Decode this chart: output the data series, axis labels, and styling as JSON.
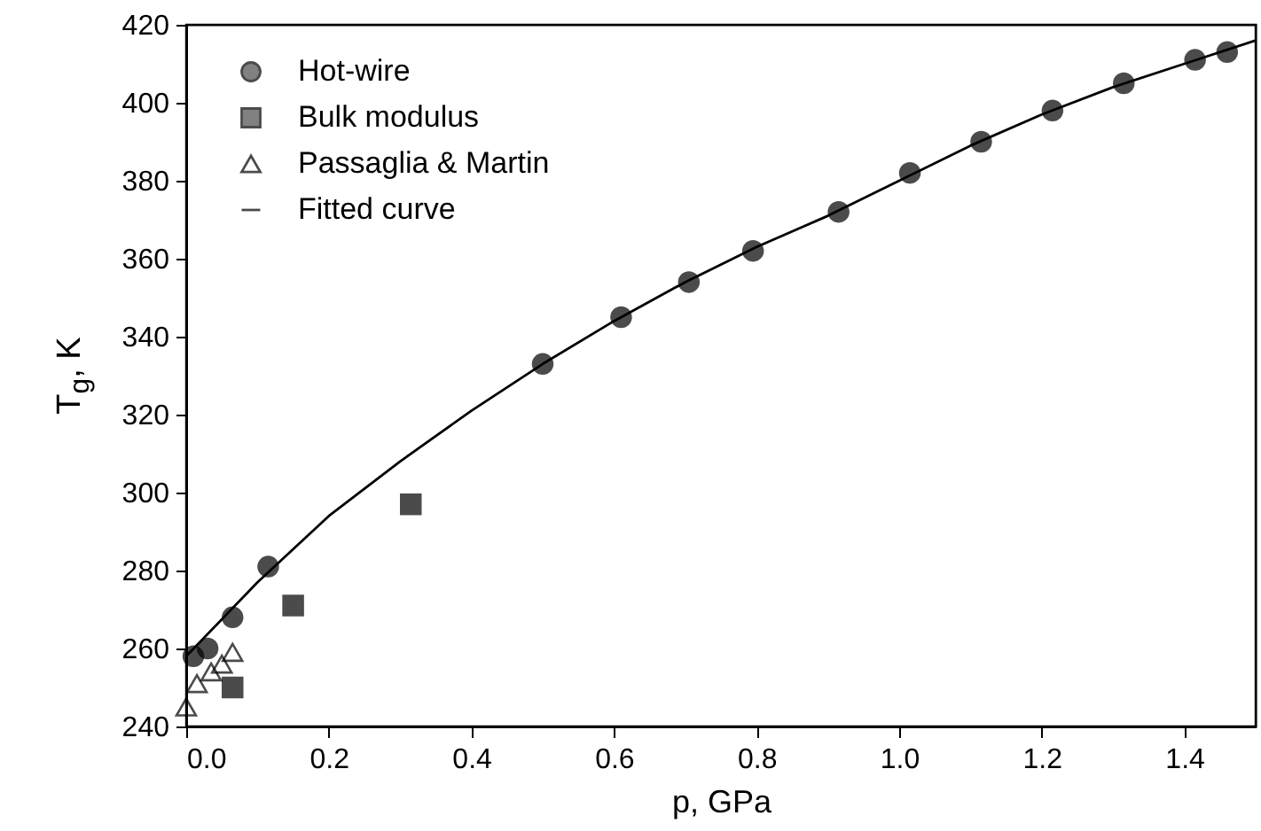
{
  "chart_data": {
    "type": "scatter",
    "xlabel": "p, GPa",
    "ylabel": "T$_{g}$, K",
    "xlim": [
      0,
      1.5
    ],
    "ylim": [
      240,
      420
    ],
    "xticks": [
      {
        "value": 0,
        "label": "0.0"
      },
      {
        "value": 0.2,
        "label": "0.2"
      },
      {
        "value": 0.4,
        "label": "0.4"
      },
      {
        "value": 0.6,
        "label": "0.6"
      },
      {
        "value": 0.8,
        "label": "0.8"
      },
      {
        "value": 1,
        "label": "1.0"
      },
      {
        "value": 1.2,
        "label": "1.2"
      },
      {
        "value": 1.4,
        "label": "1.4"
      }
    ],
    "yticks": [
      240,
      260,
      280,
      300,
      320,
      340,
      360,
      380,
      400,
      420
    ],
    "legend": "top left",
    "grid": false,
    "series": [
      {
        "name": "Hot-wire",
        "color": "#000000",
        "marker": "circle",
        "x": [
          0.01,
          0.03,
          0.065,
          0.115,
          0.5,
          0.61,
          0.705,
          0.795,
          0.915,
          1.015,
          1.115,
          1.215,
          1.315,
          1.415,
          1.46
        ],
        "values": [
          258,
          260,
          268,
          281,
          333,
          345,
          354,
          362,
          372,
          382,
          390,
          398,
          405,
          411,
          413
        ]
      },
      {
        "name": "Bulk modulus",
        "color": "#000000",
        "marker": "square",
        "x": [
          0.065,
          0.15,
          0.315
        ],
        "values": [
          250,
          271,
          297
        ]
      },
      {
        "name": "Passaglia & Martin",
        "color": "#000000",
        "marker": "triangle",
        "x": [
          0.0,
          0.015,
          0.035,
          0.05,
          0.065
        ],
        "values": [
          245,
          251,
          254,
          256,
          259
        ]
      },
      {
        "name": "Fitted curve",
        "type": "line",
        "color": "#000000",
        "marker": "none",
        "line_style": "solid",
        "x": [
          0,
          0.1,
          0.2,
          0.3,
          0.4,
          0.5,
          0.6,
          0.7,
          0.8,
          0.9,
          1.0,
          1.1,
          1.2,
          1.3,
          1.4,
          1.5
        ],
        "values": [
          258,
          277,
          294,
          308,
          321,
          333,
          344,
          354,
          363,
          371,
          380,
          389,
          397,
          404,
          410,
          416
        ]
      }
    ]
  }
}
